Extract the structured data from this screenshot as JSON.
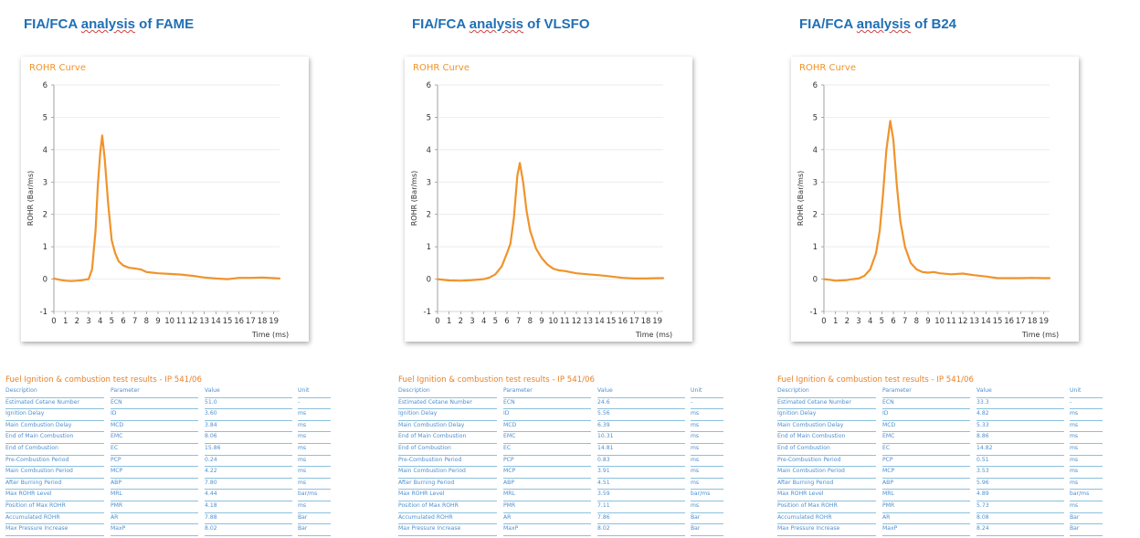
{
  "panels": [
    {
      "heading_pre": "FIA/FCA ",
      "heading_ul": "analysis",
      "heading_post": " of FAME",
      "table": {
        "title": "Fuel Ignition & combustion test results - IP 541/06",
        "headers": [
          "Description",
          "Parameter",
          "Value",
          "Unit"
        ],
        "rows": [
          [
            "Estimated Cetane Number",
            "ECN",
            "51.0",
            "-"
          ],
          [
            "Ignition Delay",
            "ID",
            "3.60",
            "ms"
          ],
          [
            "Main Combustion Delay",
            "MCD",
            "3.84",
            "ms"
          ],
          [
            "End of Main Combustion",
            "EMC",
            "8.06",
            "ms"
          ],
          [
            "End of Combustion",
            "EC",
            "15.86",
            "ms"
          ],
          [
            "Pre-Combustion Period",
            "PCP",
            "0.24",
            "ms"
          ],
          [
            "Main Combustion Period",
            "MCP",
            "4.22",
            "ms"
          ],
          [
            "After Burning Period",
            "ABP",
            "7.80",
            "ms"
          ],
          [
            "Max ROHR Level",
            "MRL",
            "4.44",
            "bar/ms"
          ],
          [
            "Position of Max ROHR",
            "PMR",
            "4.18",
            "ms"
          ],
          [
            "Accumulated ROHR",
            "AR",
            "7.88",
            "Bar"
          ],
          [
            "Max Pressure Increase",
            "MaxP",
            "8.02",
            "Bar"
          ]
        ]
      }
    },
    {
      "heading_pre": "FIA/FCA ",
      "heading_ul": "analysis",
      "heading_post": " of VLSFO",
      "table": {
        "title": "Fuel Ignition & combustion test results - IP 541/06",
        "headers": [
          "Description",
          "Parameter",
          "Value",
          "Unit"
        ],
        "rows": [
          [
            "Estimated Cetane Number",
            "ECN",
            "24.6",
            "-"
          ],
          [
            "Ignition Delay",
            "ID",
            "5.56",
            "ms"
          ],
          [
            "Main Combustion Delay",
            "MCD",
            "6.39",
            "ms"
          ],
          [
            "End of Main Combustion",
            "EMC",
            "10.31",
            "ms"
          ],
          [
            "End of Combustion",
            "EC",
            "14.81",
            "ms"
          ],
          [
            "Pre-Combustion Period",
            "PCP",
            "0.83",
            "ms"
          ],
          [
            "Main Combustion Period",
            "MCP",
            "3.91",
            "ms"
          ],
          [
            "After Burning Period",
            "ABP",
            "4.51",
            "ms"
          ],
          [
            "Max ROHR Level",
            "MRL",
            "3.59",
            "bar/ms"
          ],
          [
            "Position of Max ROHR",
            "PMR",
            "7.11",
            "ms"
          ],
          [
            "Accumulated ROHR",
            "AR",
            "7.86",
            "Bar"
          ],
          [
            "Max Pressure Increase",
            "MaxP",
            "8.02",
            "Bar"
          ]
        ]
      }
    },
    {
      "heading_pre": "FIA/FCA ",
      "heading_ul": "analysis",
      "heading_post": " of B24",
      "table": {
        "title": "Fuel Ignition & combustion test results - IP 541/06",
        "headers": [
          "Description",
          "Parameter",
          "Value",
          "Unit"
        ],
        "rows": [
          [
            "Estimated Cetane Number",
            "ECN",
            "33.3",
            "-"
          ],
          [
            "Ignition Delay",
            "ID",
            "4.82",
            "ms"
          ],
          [
            "Main Combustion Delay",
            "MCD",
            "5.33",
            "ms"
          ],
          [
            "End of Main Combustion",
            "EMC",
            "8.86",
            "ms"
          ],
          [
            "End of Combustion",
            "EC",
            "14.82",
            "ms"
          ],
          [
            "Pre-Combustion Period",
            "PCP",
            "0.51",
            "ms"
          ],
          [
            "Main Combustion Period",
            "MCP",
            "3.53",
            "ms"
          ],
          [
            "After Burning Period",
            "ABP",
            "5.96",
            "ms"
          ],
          [
            "Max ROHR Level",
            "MRL",
            "4.89",
            "bar/ms"
          ],
          [
            "Position of Max ROHR",
            "PMR",
            "5.73",
            "ms"
          ],
          [
            "Accumulated ROHR",
            "AR",
            "8.08",
            "Bar"
          ],
          [
            "Max Pressure Increase",
            "MaxP",
            "8.24",
            "Bar"
          ]
        ]
      }
    }
  ],
  "chart_data": [
    {
      "type": "line",
      "title": "ROHR Curve",
      "xlabel": "Time (ms)",
      "ylabel": "ROHR (Bar/ms)",
      "xlim": [
        0,
        19.5
      ],
      "ylim": [
        -1,
        6
      ],
      "x_ticks": [
        0,
        1,
        2,
        3,
        4,
        5,
        6,
        7,
        8,
        9,
        10,
        11,
        12,
        13,
        14,
        15,
        16,
        17,
        18,
        19
      ],
      "y_ticks": [
        -1,
        0,
        1,
        2,
        3,
        4,
        5,
        6
      ],
      "line_color": "#f0932b",
      "x": [
        0,
        0.5,
        1,
        1.5,
        2,
        2.5,
        3,
        3.3,
        3.6,
        3.8,
        4.0,
        4.18,
        4.4,
        4.7,
        5.0,
        5.3,
        5.6,
        6.0,
        6.5,
        7.0,
        7.5,
        8.0,
        8.5,
        9,
        10,
        11,
        12,
        13,
        14,
        15,
        16,
        17,
        18,
        19,
        19.5
      ],
      "series": [
        {
          "values": [
            0.02,
            -0.02,
            -0.05,
            -0.06,
            -0.05,
            -0.03,
            0.0,
            0.3,
            1.5,
            2.9,
            3.9,
            4.44,
            3.7,
            2.3,
            1.2,
            0.8,
            0.55,
            0.42,
            0.35,
            0.33,
            0.3,
            0.22,
            0.2,
            0.18,
            0.16,
            0.14,
            0.1,
            0.05,
            0.02,
            0.0,
            0.04,
            0.04,
            0.05,
            0.03,
            0.02
          ]
        }
      ]
    },
    {
      "type": "line",
      "title": "ROHR Curve",
      "xlabel": "Time (ms)",
      "ylabel": "ROHR (Bar/ms)",
      "xlim": [
        0,
        19.5
      ],
      "ylim": [
        -1,
        6
      ],
      "x_ticks": [
        0,
        1,
        2,
        3,
        4,
        5,
        6,
        7,
        8,
        9,
        10,
        11,
        12,
        13,
        14,
        15,
        16,
        17,
        18,
        19
      ],
      "y_ticks": [
        -1,
        0,
        1,
        2,
        3,
        4,
        5,
        6
      ],
      "line_color": "#f0932b",
      "x": [
        0,
        1,
        2,
        3,
        4,
        4.5,
        5.0,
        5.56,
        6.0,
        6.3,
        6.6,
        6.9,
        7.11,
        7.4,
        7.7,
        8.0,
        8.5,
        9.0,
        9.5,
        10,
        10.5,
        11,
        12,
        13,
        14,
        15,
        16,
        17,
        18,
        19,
        19.5
      ],
      "series": [
        {
          "values": [
            0.0,
            -0.04,
            -0.05,
            -0.03,
            0.0,
            0.05,
            0.15,
            0.4,
            0.8,
            1.1,
            1.9,
            3.2,
            3.59,
            3.0,
            2.1,
            1.5,
            0.95,
            0.65,
            0.45,
            0.32,
            0.27,
            0.25,
            0.18,
            0.15,
            0.12,
            0.08,
            0.04,
            0.02,
            0.02,
            0.03,
            0.03
          ]
        }
      ]
    },
    {
      "type": "line",
      "title": "ROHR Curve",
      "xlabel": "Time (ms)",
      "ylabel": "ROHR (Bar/ms)",
      "xlim": [
        0,
        19.5
      ],
      "ylim": [
        -1,
        6
      ],
      "x_ticks": [
        0,
        1,
        2,
        3,
        4,
        5,
        6,
        7,
        8,
        9,
        10,
        11,
        12,
        13,
        14,
        15,
        16,
        17,
        18,
        19
      ],
      "y_ticks": [
        -1,
        0,
        1,
        2,
        3,
        4,
        5,
        6
      ],
      "line_color": "#f0932b",
      "x": [
        0,
        0.5,
        1,
        1.5,
        2,
        2.5,
        3,
        3.5,
        4.0,
        4.5,
        4.82,
        5.1,
        5.4,
        5.73,
        6.0,
        6.3,
        6.6,
        7.0,
        7.5,
        8.0,
        8.5,
        9,
        9.5,
        10,
        11,
        12,
        13,
        14,
        15,
        16,
        17,
        18,
        19,
        19.5
      ],
      "series": [
        {
          "values": [
            0.0,
            -0.02,
            -0.05,
            -0.04,
            -0.03,
            0.0,
            0.02,
            0.1,
            0.3,
            0.8,
            1.5,
            2.6,
            4.0,
            4.89,
            4.3,
            2.9,
            1.8,
            1.0,
            0.5,
            0.3,
            0.22,
            0.2,
            0.22,
            0.18,
            0.15,
            0.17,
            0.12,
            0.08,
            0.03,
            0.03,
            0.03,
            0.04,
            0.03,
            0.03
          ]
        }
      ]
    }
  ]
}
